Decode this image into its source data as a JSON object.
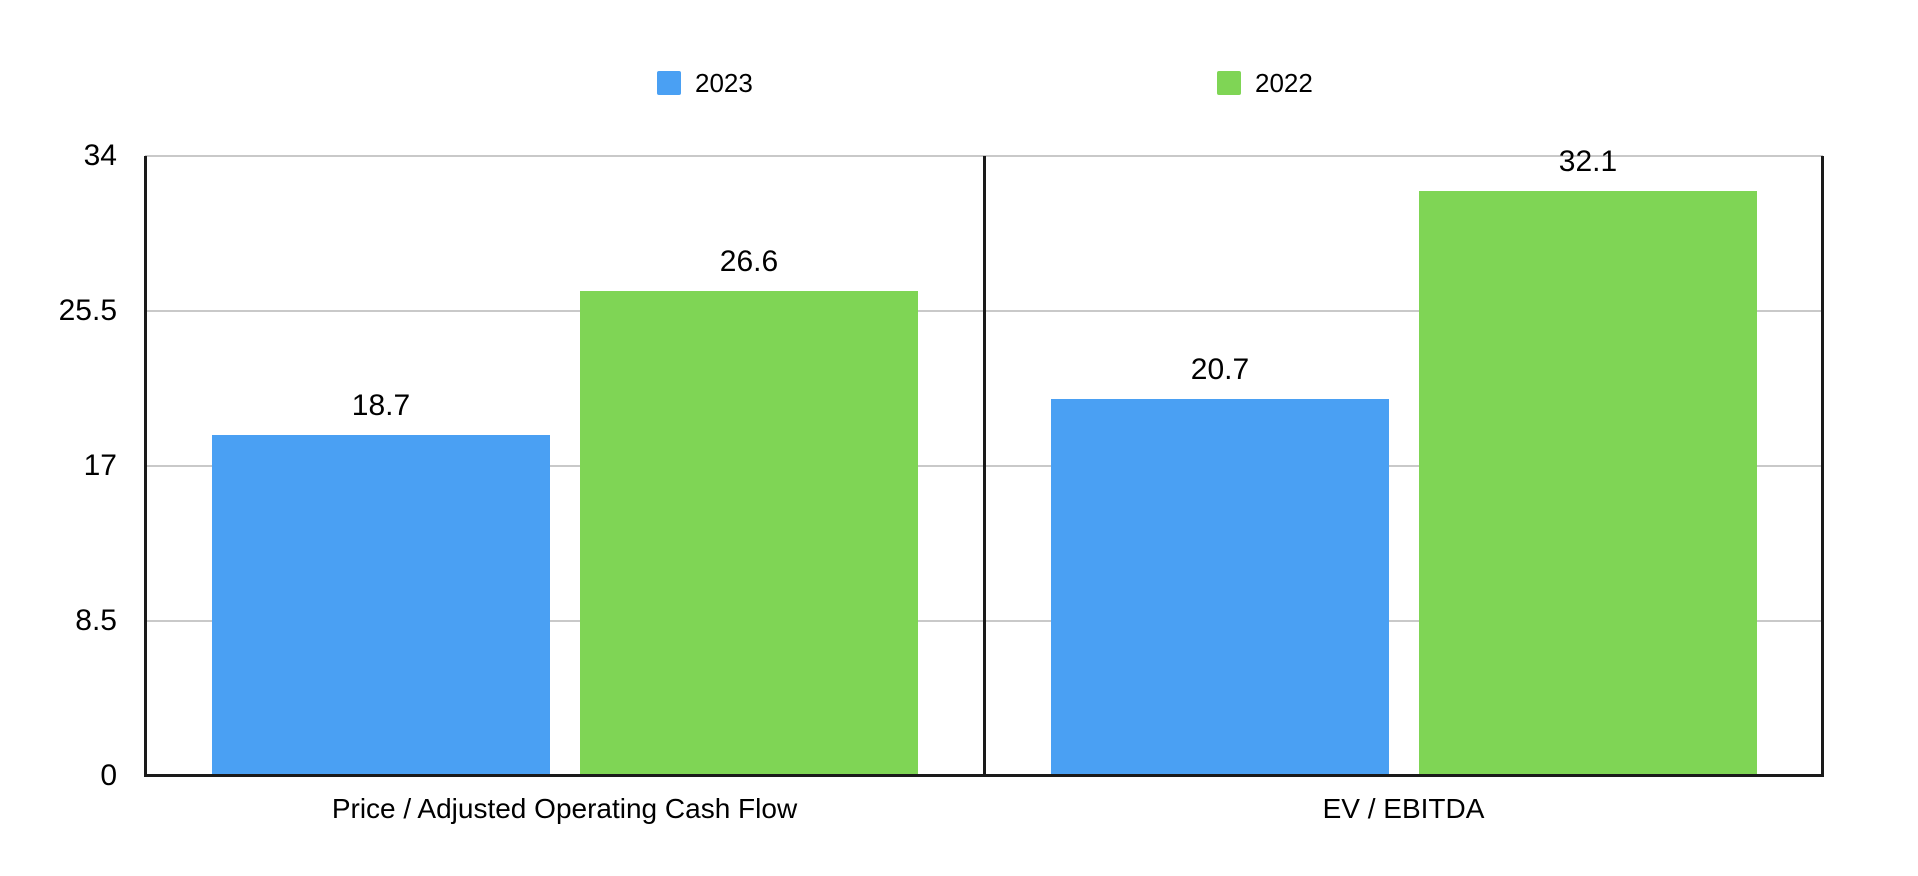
{
  "chart_data": {
    "type": "bar",
    "title": "",
    "categories": [
      "Price / Adjusted Operating Cash Flow",
      "EV / EBITDA"
    ],
    "series": [
      {
        "name": "2023",
        "color": "#4AA0F3",
        "values": [
          18.7,
          20.7
        ]
      },
      {
        "name": "2022",
        "color": "#7FD555",
        "values": [
          26.6,
          32.1
        ]
      }
    ],
    "xlabel": "",
    "ylabel": "",
    "ylim": [
      0,
      34
    ],
    "yticks": [
      0,
      8.5,
      17,
      25.5,
      34
    ],
    "grid": "horizontal",
    "legend_position": "top",
    "value_labels_shown": true
  },
  "colors": {
    "bar_blue": "#4AA0F3",
    "bar_green": "#7FD555",
    "axis": "#1a1a1a",
    "gridline": "#c9c9c9",
    "text": "#000000",
    "background": "#ffffff"
  }
}
